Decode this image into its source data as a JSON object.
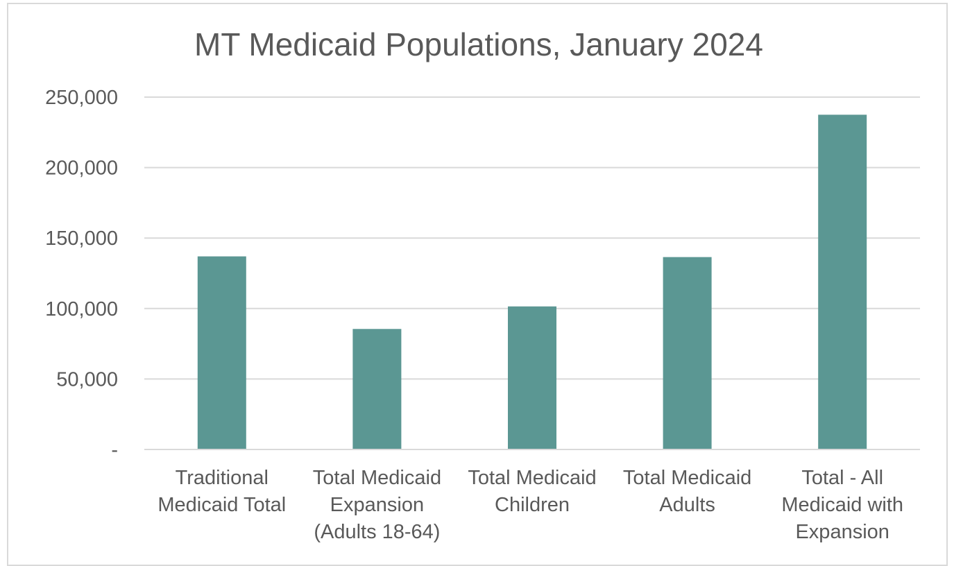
{
  "chart_data": {
    "type": "bar",
    "title": "MT Medicaid Populations, January 2024",
    "xlabel": "",
    "ylabel": "",
    "categories": [
      [
        "Traditional",
        "Medicaid Total"
      ],
      [
        "Total Medicaid",
        "Expansion",
        "(Adults 18-64)"
      ],
      [
        "Total Medicaid",
        "Children"
      ],
      [
        "Total Medicaid",
        "Adults"
      ],
      [
        "Total - All",
        "Medicaid with",
        "Expansion"
      ]
    ],
    "values": [
      137000,
      85500,
      101500,
      136500,
      237500
    ],
    "ylim": [
      0,
      250000
    ],
    "yticks": [
      0,
      50000,
      100000,
      150000,
      200000,
      250000
    ],
    "ytick_labels": [
      "-",
      "50,000",
      "100,000",
      "150,000",
      "200,000",
      "250,000"
    ],
    "grid": true,
    "legend": "none",
    "bar_color": "#5b9793",
    "grid_color": "#d9d9d9",
    "text_color": "#595959"
  }
}
